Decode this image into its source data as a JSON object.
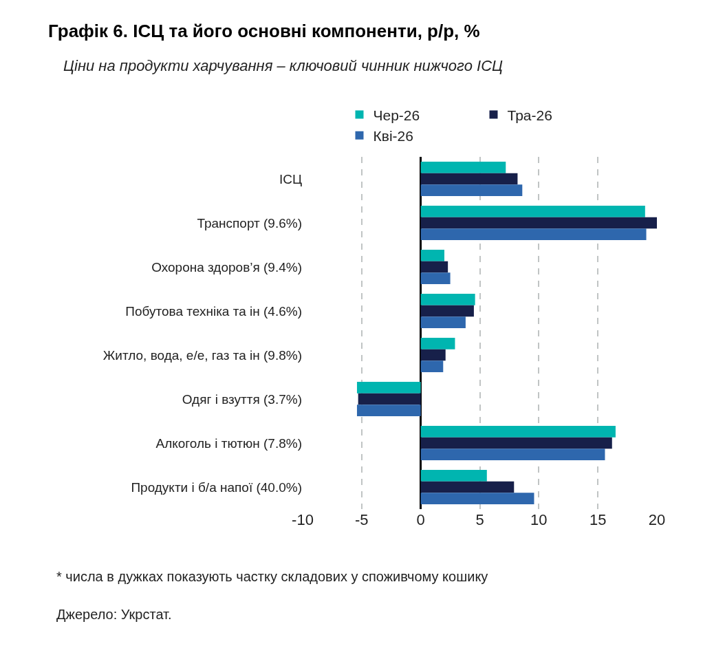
{
  "chart_data": {
    "type": "bar",
    "orientation": "horizontal",
    "title": "Графік 6. ІСЦ та його основні компоненти, р/р, %",
    "subtitle": "Ціни на продукти харчування – ключовий чинник нижчого ІСЦ",
    "categories": [
      "ІСЦ",
      "Транспорт (9.6%)",
      "Охорона здоров’я (9.4%)",
      "Побутова техніка та ін (4.6%)",
      "Житло, вода, е/е, газ та ін (9.8%)",
      "Одяг і взуття (3.7%)",
      "Алкоголь і тютюн (7.8%)",
      "Продукти і б/а напої (40.0%)"
    ],
    "series": [
      {
        "name": "Чер-26",
        "color": "#00b5b0",
        "values": [
          7.2,
          19.0,
          2.0,
          4.6,
          2.9,
          -5.4,
          16.5,
          5.6
        ]
      },
      {
        "name": "Тра-26",
        "color": "#17204a",
        "values": [
          8.2,
          20.0,
          2.3,
          4.5,
          2.1,
          -5.3,
          16.2,
          7.9
        ]
      },
      {
        "name": "Кві-26",
        "color": "#2e67ad",
        "values": [
          8.6,
          19.1,
          2.5,
          3.8,
          1.9,
          -5.4,
          15.6,
          9.6
        ]
      }
    ],
    "xlim": [
      -10,
      20
    ],
    "xticks": [
      -10,
      -5,
      0,
      5,
      10,
      15,
      20
    ],
    "grid": "x",
    "legend": "top",
    "annotations": [
      "* числа в дужках показують частку складових у споживчому кошику",
      "Джерело: Укрстат."
    ]
  }
}
